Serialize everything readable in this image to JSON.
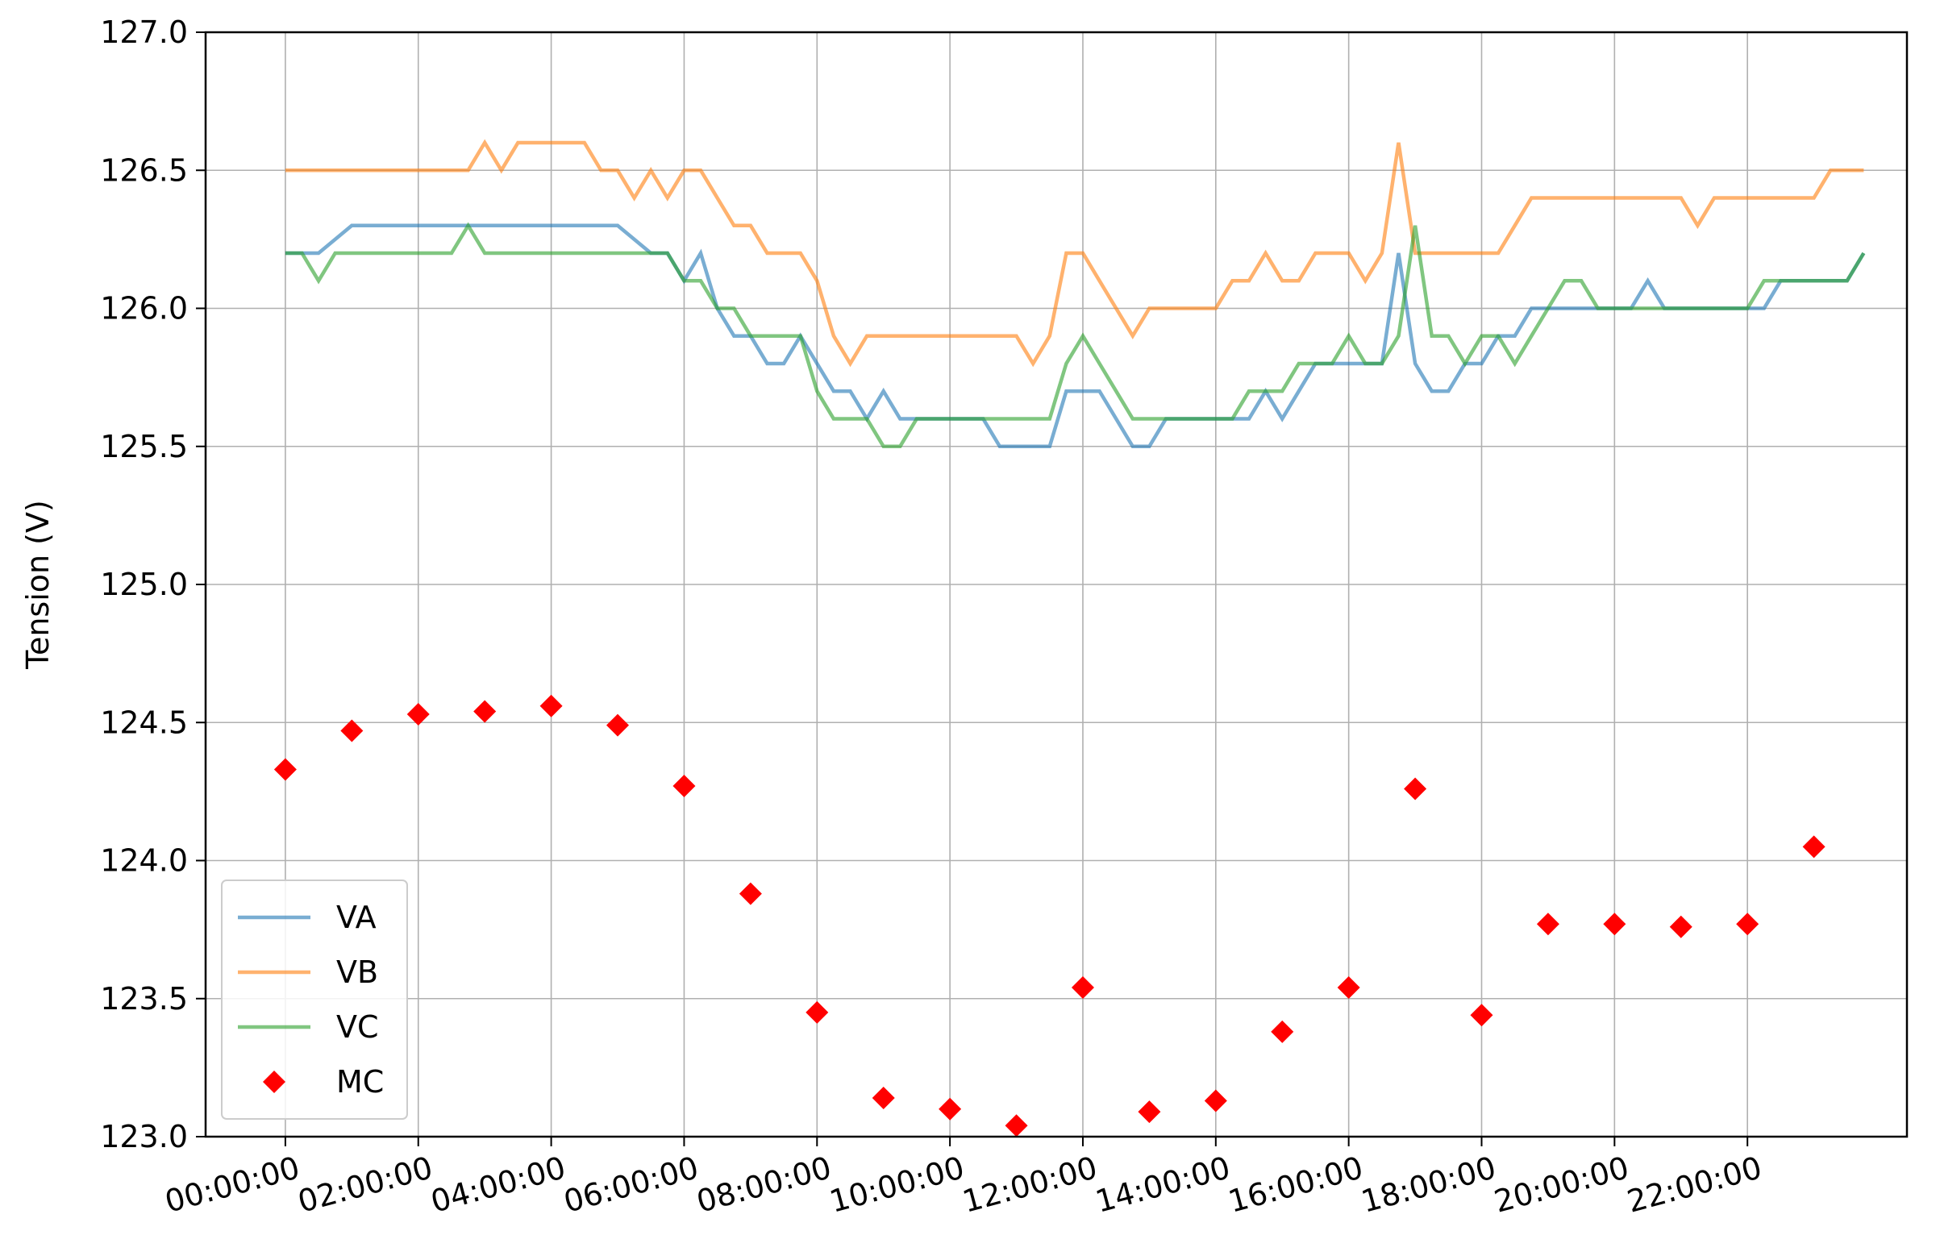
{
  "chart_data": {
    "type": "line",
    "title": "",
    "xlabel": "",
    "ylabel": "Tension (V)",
    "ylim": [
      123.0,
      127.0
    ],
    "y_ticks": [
      "123.0",
      "123.5",
      "124.0",
      "124.5",
      "125.0",
      "125.5",
      "126.0",
      "126.5",
      "127.0"
    ],
    "x_tick_labels": [
      "00:00:00",
      "02:00:00",
      "04:00:00",
      "06:00:00",
      "08:00:00",
      "10:00:00",
      "12:00:00",
      "14:00:00",
      "16:00:00",
      "18:00:00",
      "20:00:00",
      "22:00:00"
    ],
    "x_range_hours": [
      -1.2,
      24.4
    ],
    "grid": true,
    "legend_position": "lower-left",
    "series": [
      {
        "name": "VA",
        "color": "#1f77b4",
        "style": "line",
        "x": [
          0.0,
          0.5,
          1.0,
          1.5,
          2.0,
          2.5,
          3.0,
          3.5,
          4.0,
          4.5,
          5.0,
          5.5,
          5.75,
          6.0,
          6.25,
          6.5,
          6.75,
          7.0,
          7.25,
          7.5,
          7.75,
          8.0,
          8.25,
          8.5,
          8.75,
          9.0,
          9.25,
          9.5,
          10.0,
          10.5,
          10.75,
          11.0,
          11.5,
          11.75,
          12.0,
          12.25,
          12.5,
          12.75,
          13.0,
          13.25,
          13.5,
          14.0,
          14.5,
          14.75,
          15.0,
          15.25,
          15.5,
          15.75,
          16.0,
          16.5,
          16.75,
          17.0,
          17.25,
          17.5,
          17.75,
          18.0,
          18.25,
          18.5,
          18.75,
          19.0,
          19.5,
          20.0,
          20.25,
          20.5,
          20.75,
          21.0,
          21.5,
          22.0,
          22.25,
          22.5,
          23.0,
          23.5,
          23.75
        ],
        "y": [
          126.2,
          126.2,
          126.3,
          126.3,
          126.3,
          126.3,
          126.3,
          126.3,
          126.3,
          126.3,
          126.3,
          126.2,
          126.2,
          126.1,
          126.2,
          126.0,
          125.9,
          125.9,
          125.8,
          125.8,
          125.9,
          125.8,
          125.7,
          125.7,
          125.6,
          125.7,
          125.6,
          125.6,
          125.6,
          125.6,
          125.5,
          125.5,
          125.5,
          125.7,
          125.7,
          125.7,
          125.6,
          125.5,
          125.5,
          125.6,
          125.6,
          125.6,
          125.6,
          125.7,
          125.6,
          125.7,
          125.8,
          125.8,
          125.8,
          125.8,
          126.2,
          125.8,
          125.7,
          125.7,
          125.8,
          125.8,
          125.9,
          125.9,
          126.0,
          126.0,
          126.0,
          126.0,
          126.0,
          126.1,
          126.0,
          126.0,
          126.0,
          126.0,
          126.0,
          126.1,
          126.1,
          126.1,
          126.2
        ]
      },
      {
        "name": "VB",
        "color": "#ff7f0e",
        "style": "line",
        "x": [
          0.0,
          0.5,
          1.0,
          1.5,
          2.0,
          2.5,
          2.75,
          3.0,
          3.25,
          3.5,
          4.0,
          4.25,
          4.5,
          4.75,
          5.0,
          5.25,
          5.5,
          5.75,
          6.0,
          6.25,
          6.5,
          6.75,
          7.0,
          7.25,
          7.5,
          7.75,
          8.0,
          8.25,
          8.5,
          8.75,
          9.0,
          9.5,
          10.0,
          10.5,
          11.0,
          11.25,
          11.5,
          11.75,
          12.0,
          12.25,
          12.5,
          12.75,
          13.0,
          13.25,
          13.5,
          14.0,
          14.25,
          14.5,
          14.75,
          15.0,
          15.25,
          15.5,
          15.75,
          16.0,
          16.25,
          16.5,
          16.75,
          17.0,
          17.25,
          17.5,
          18.0,
          18.25,
          18.5,
          18.75,
          19.0,
          19.5,
          20.0,
          20.5,
          21.0,
          21.25,
          21.5,
          22.0,
          22.5,
          23.0,
          23.25,
          23.5,
          23.75
        ],
        "y": [
          126.5,
          126.5,
          126.5,
          126.5,
          126.5,
          126.5,
          126.5,
          126.6,
          126.5,
          126.6,
          126.6,
          126.6,
          126.6,
          126.5,
          126.5,
          126.4,
          126.5,
          126.4,
          126.5,
          126.5,
          126.4,
          126.3,
          126.3,
          126.2,
          126.2,
          126.2,
          126.1,
          125.9,
          125.8,
          125.9,
          125.9,
          125.9,
          125.9,
          125.9,
          125.9,
          125.8,
          125.9,
          126.2,
          126.2,
          126.1,
          126.0,
          125.9,
          126.0,
          126.0,
          126.0,
          126.0,
          126.1,
          126.1,
          126.2,
          126.1,
          126.1,
          126.2,
          126.2,
          126.2,
          126.1,
          126.2,
          126.6,
          126.2,
          126.2,
          126.2,
          126.2,
          126.2,
          126.3,
          126.4,
          126.4,
          126.4,
          126.4,
          126.4,
          126.4,
          126.3,
          126.4,
          126.4,
          126.4,
          126.4,
          126.5,
          126.5,
          126.5
        ]
      },
      {
        "name": "VC",
        "color": "#2ca02c",
        "style": "line",
        "x": [
          0.0,
          0.25,
          0.5,
          0.75,
          1.0,
          1.5,
          2.0,
          2.5,
          2.75,
          3.0,
          3.5,
          4.0,
          4.5,
          5.0,
          5.5,
          5.75,
          6.0,
          6.25,
          6.5,
          6.75,
          7.0,
          7.25,
          7.5,
          7.75,
          8.0,
          8.25,
          8.5,
          8.75,
          9.0,
          9.25,
          9.5,
          10.0,
          10.5,
          11.0,
          11.5,
          11.75,
          12.0,
          12.25,
          12.5,
          12.75,
          13.0,
          13.5,
          14.0,
          14.25,
          14.5,
          14.75,
          15.0,
          15.25,
          15.5,
          15.75,
          16.0,
          16.25,
          16.5,
          16.75,
          17.0,
          17.25,
          17.5,
          17.75,
          18.0,
          18.25,
          18.5,
          18.75,
          19.0,
          19.25,
          19.5,
          19.75,
          20.0,
          20.5,
          21.0,
          21.5,
          22.0,
          22.25,
          22.5,
          23.0,
          23.5,
          23.75
        ],
        "y": [
          126.2,
          126.2,
          126.1,
          126.2,
          126.2,
          126.2,
          126.2,
          126.2,
          126.3,
          126.2,
          126.2,
          126.2,
          126.2,
          126.2,
          126.2,
          126.2,
          126.1,
          126.1,
          126.0,
          126.0,
          125.9,
          125.9,
          125.9,
          125.9,
          125.7,
          125.6,
          125.6,
          125.6,
          125.5,
          125.5,
          125.6,
          125.6,
          125.6,
          125.6,
          125.6,
          125.8,
          125.9,
          125.8,
          125.7,
          125.6,
          125.6,
          125.6,
          125.6,
          125.6,
          125.7,
          125.7,
          125.7,
          125.8,
          125.8,
          125.8,
          125.9,
          125.8,
          125.8,
          125.9,
          126.3,
          125.9,
          125.9,
          125.8,
          125.9,
          125.9,
          125.8,
          125.9,
          126.0,
          126.1,
          126.1,
          126.0,
          126.0,
          126.0,
          126.0,
          126.0,
          126.0,
          126.1,
          126.1,
          126.1,
          126.1,
          126.2
        ]
      },
      {
        "name": "MC",
        "color": "#ff0000",
        "style": "marker-diamond",
        "x": [
          0,
          1,
          2,
          3,
          4,
          5,
          6,
          7,
          8,
          9,
          10,
          11,
          12,
          13,
          14,
          15,
          16,
          17,
          18,
          19,
          20,
          21,
          22,
          23
        ],
        "y": [
          124.33,
          124.47,
          124.53,
          124.54,
          124.56,
          124.49,
          124.27,
          123.88,
          123.45,
          123.14,
          123.1,
          123.04,
          123.54,
          123.09,
          123.13,
          123.38,
          123.54,
          124.26,
          123.44,
          123.77,
          123.77,
          123.76,
          123.77,
          124.05
        ]
      }
    ]
  }
}
